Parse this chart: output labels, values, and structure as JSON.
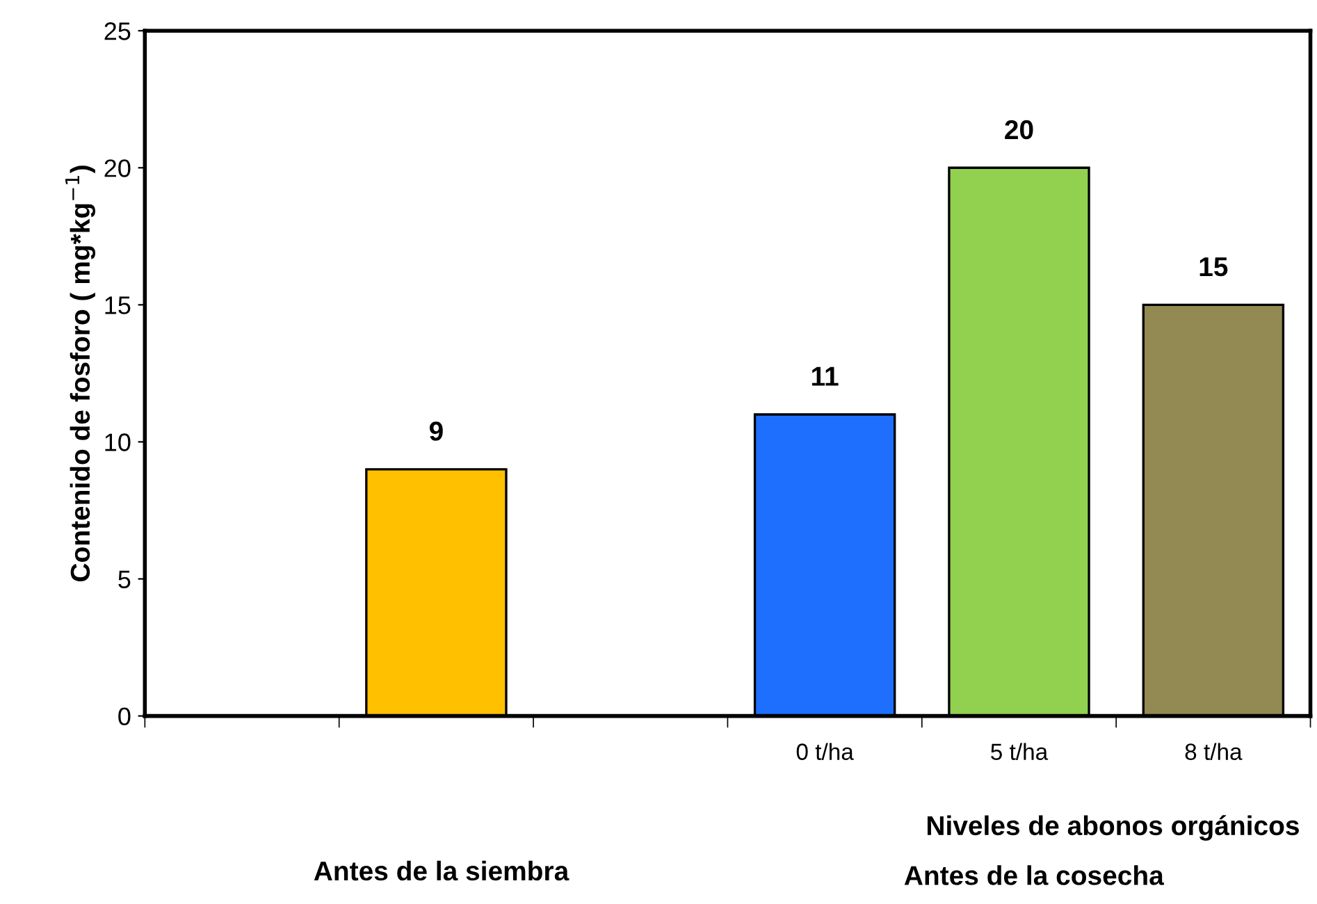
{
  "chart_data": {
    "type": "bar",
    "ylabel": "Contenido de fosforo ( mg*kg$^{−1}$)",
    "categories": [
      null,
      null,
      null,
      "0 t/ha",
      "5 t/ha",
      "8 t/ha"
    ],
    "values": [
      null,
      9,
      null,
      11,
      20,
      15
    ],
    "colors": [
      "#ffc000",
      "#ffc000",
      "#ffc000",
      "#1f6fff",
      "#92d050",
      "#938953"
    ],
    "ylim": [
      0,
      25
    ],
    "yticks": [
      0,
      5,
      10,
      15,
      20,
      25
    ],
    "data_labels": true,
    "grid": false,
    "legend": false,
    "annotations": [
      "Niveles de abonos orgánicos",
      "Antes de la siembra",
      "Antes de la cosecha"
    ]
  }
}
